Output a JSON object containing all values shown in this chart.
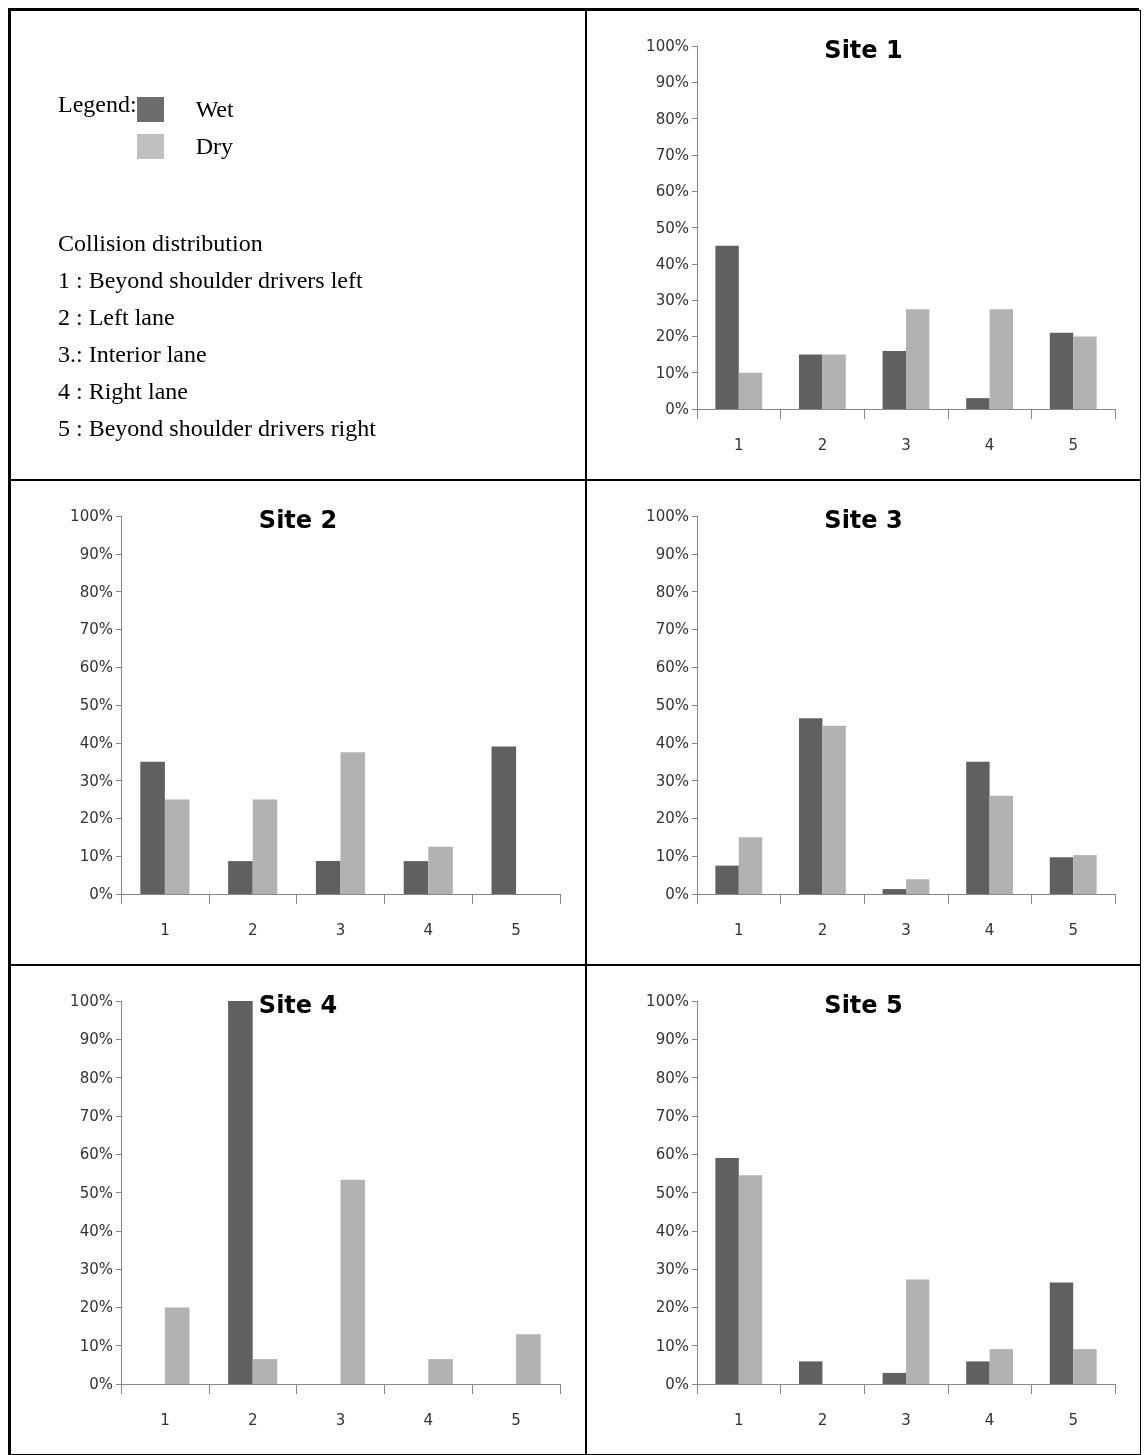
{
  "chart_data": [
    {
      "type": "other",
      "legend_title": "Legend:",
      "series": [
        {
          "name": "Wet",
          "color": "#6d6d6d"
        },
        {
          "name": "Dry",
          "color": "#c0c0c0"
        }
      ],
      "annotations": [
        "Collision distribution",
        "1 : Beyond shoulder drivers left",
        "2 : Left lane",
        "3.: Interior lane",
        "4 : Right lane",
        "5 : Beyond shoulder drivers right"
      ]
    },
    {
      "type": "bar",
      "title": "Site 1",
      "categories": [
        "1",
        "2",
        "3",
        "4",
        "5"
      ],
      "series": [
        {
          "color": "#606060",
          "values": [
            45,
            15,
            16,
            3,
            21
          ]
        },
        {
          "color": "#b2b2b2",
          "values": [
            10,
            15,
            27.5,
            27.5,
            20
          ]
        }
      ],
      "ylim": [
        0,
        100
      ],
      "yticks": [
        {
          "value": 0,
          "label": "0%"
        },
        {
          "value": 10,
          "label": "10%"
        },
        {
          "value": 20,
          "label": "20%"
        },
        {
          "value": 30,
          "label": "30%"
        },
        {
          "value": 40,
          "label": "40%"
        },
        {
          "value": 50,
          "label": "50%"
        },
        {
          "value": 60,
          "label": "60%"
        },
        {
          "value": 70,
          "label": "70%"
        },
        {
          "value": 80,
          "label": "80%"
        },
        {
          "value": 90,
          "label": "90%"
        },
        {
          "value": 100,
          "label": "100%"
        }
      ]
    },
    {
      "type": "bar",
      "title": "Site 2",
      "categories": [
        "1",
        "2",
        "3",
        "4",
        "5"
      ],
      "series": [
        {
          "color": "#606060",
          "values": [
            35,
            8.7,
            8.7,
            8.7,
            39
          ]
        },
        {
          "color": "#b2b2b2",
          "values": [
            25,
            25,
            37.5,
            12.5,
            0
          ]
        }
      ],
      "ylim": [
        0,
        100
      ],
      "yticks": [
        {
          "value": 0,
          "label": "0%"
        },
        {
          "value": 10,
          "label": "10%"
        },
        {
          "value": 20,
          "label": "20%"
        },
        {
          "value": 30,
          "label": "30%"
        },
        {
          "value": 40,
          "label": "40%"
        },
        {
          "value": 50,
          "label": "50%"
        },
        {
          "value": 60,
          "label": "60%"
        },
        {
          "value": 70,
          "label": "70%"
        },
        {
          "value": 80,
          "label": "80%"
        },
        {
          "value": 90,
          "label": "90%"
        },
        {
          "value": 100,
          "label": "100%"
        }
      ]
    },
    {
      "type": "bar",
      "title": "Site 3",
      "categories": [
        "1",
        "2",
        "3",
        "4",
        "5"
      ],
      "series": [
        {
          "color": "#606060",
          "values": [
            7.5,
            46.5,
            1.3,
            35,
            9.7
          ]
        },
        {
          "color": "#b2b2b2",
          "values": [
            15,
            44.5,
            3.9,
            26,
            10.3
          ]
        }
      ],
      "ylim": [
        0,
        100
      ],
      "yticks": [
        {
          "value": 0,
          "label": "0%"
        },
        {
          "value": 10,
          "label": "10%"
        },
        {
          "value": 20,
          "label": "20%"
        },
        {
          "value": 30,
          "label": "30%"
        },
        {
          "value": 40,
          "label": "40%"
        },
        {
          "value": 50,
          "label": "50%"
        },
        {
          "value": 60,
          "label": "60%"
        },
        {
          "value": 70,
          "label": "70%"
        },
        {
          "value": 80,
          "label": "80%"
        },
        {
          "value": 90,
          "label": "90%"
        },
        {
          "value": 100,
          "label": "100%"
        }
      ]
    },
    {
      "type": "bar",
      "title": "Site 4",
      "categories": [
        "1",
        "2",
        "3",
        "4",
        "5"
      ],
      "series": [
        {
          "color": "#606060",
          "values": [
            0,
            100,
            0,
            0,
            0
          ]
        },
        {
          "color": "#b2b2b2",
          "values": [
            20,
            6.5,
            53.3,
            6.5,
            13
          ]
        }
      ],
      "ylim": [
        0,
        100
      ],
      "yticks": [
        {
          "value": 0,
          "label": "0%"
        },
        {
          "value": 10,
          "label": "10%"
        },
        {
          "value": 20,
          "label": "20%"
        },
        {
          "value": 30,
          "label": "30%"
        },
        {
          "value": 40,
          "label": "40%"
        },
        {
          "value": 50,
          "label": "50%"
        },
        {
          "value": 60,
          "label": "60%"
        },
        {
          "value": 70,
          "label": "70%"
        },
        {
          "value": 80,
          "label": "80%"
        },
        {
          "value": 90,
          "label": "90%"
        },
        {
          "value": 100,
          "label": "100%"
        }
      ]
    },
    {
      "type": "bar",
      "title": "Site 5",
      "categories": [
        "1",
        "2",
        "3",
        "4",
        "5"
      ],
      "series": [
        {
          "color": "#606060",
          "values": [
            59,
            5.9,
            2.9,
            5.9,
            26.5
          ]
        },
        {
          "color": "#b2b2b2",
          "values": [
            54.5,
            0,
            27.3,
            9.1,
            9.1
          ]
        }
      ],
      "ylim": [
        0,
        100
      ],
      "yticks": [
        {
          "value": 0,
          "label": "0%"
        },
        {
          "value": 10,
          "label": "10%"
        },
        {
          "value": 20,
          "label": "20%"
        },
        {
          "value": 30,
          "label": "30%"
        },
        {
          "value": 40,
          "label": "40%"
        },
        {
          "value": 50,
          "label": "50%"
        },
        {
          "value": 60,
          "label": "60%"
        },
        {
          "value": 70,
          "label": "70%"
        },
        {
          "value": 80,
          "label": "80%"
        },
        {
          "value": 90,
          "label": "90%"
        },
        {
          "value": 100,
          "label": "100%"
        }
      ]
    }
  ]
}
